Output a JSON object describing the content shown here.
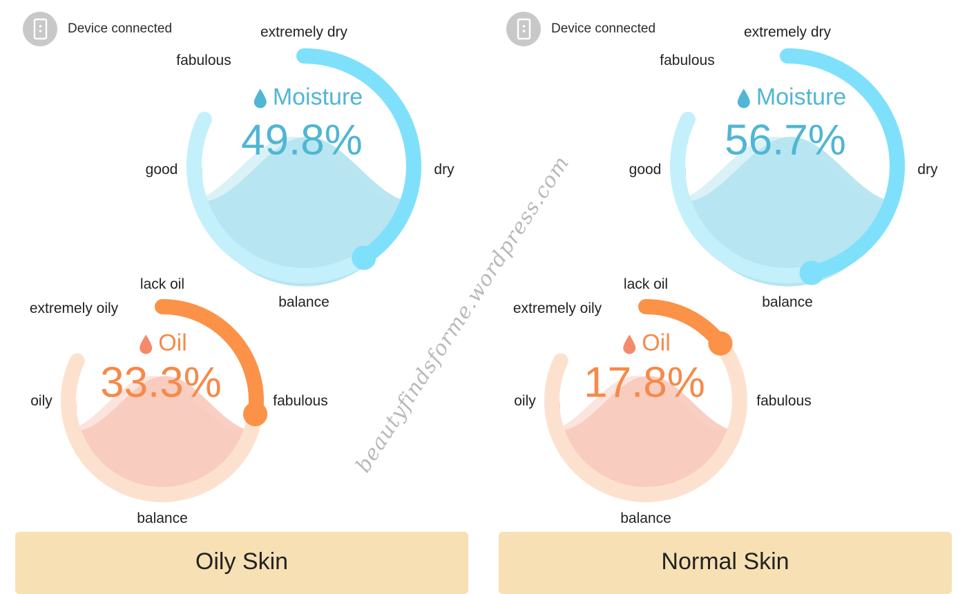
{
  "colors": {
    "moisture_arc": "#7fe0fb",
    "moisture_track": "#c3f0fb",
    "moisture_fill": "#b3e3f0",
    "moisture_text": "#4fb6d3",
    "oil_arc": "#fb9247",
    "oil_track": "#fde1cf",
    "oil_fill": "#f8c9bd",
    "oil_text": "#f58a4a",
    "skin_banner": "#f7e0b3",
    "device_icon": "#c8c8c8"
  },
  "watermark": "beautyfindsforme.wordpress.com",
  "panels": [
    {
      "device_status": "Device connected",
      "moisture": {
        "title": "Moisture",
        "icon": "water-drop-icon",
        "value": "49.8%",
        "level": 0.498,
        "labels": {
          "top": "extremely dry",
          "top_left": "fabulous",
          "left": "good",
          "right": "dry",
          "bottom": "balance"
        }
      },
      "oil": {
        "title": "Oil",
        "icon": "oil-drop-icon",
        "value": "33.3%",
        "level": 0.333,
        "labels": {
          "top": "lack oil",
          "top_left": "extremely oily",
          "left": "oily",
          "right": "fabulous",
          "bottom": "balance"
        }
      },
      "skin_type": "Oily Skin"
    },
    {
      "device_status": "Device connected",
      "moisture": {
        "title": "Moisture",
        "icon": "water-drop-icon",
        "value": "56.7%",
        "level": 0.567,
        "labels": {
          "top": "extremely dry",
          "top_left": "fabulous",
          "left": "good",
          "right": "dry",
          "bottom": "balance"
        }
      },
      "oil": {
        "title": "Oil",
        "icon": "oil-drop-icon",
        "value": "17.8%",
        "level": 0.178,
        "labels": {
          "top": "lack oil",
          "top_left": "extremely oily",
          "left": "oily",
          "right": "fabulous",
          "bottom": "balance"
        }
      },
      "skin_type": "Normal Skin"
    }
  ]
}
